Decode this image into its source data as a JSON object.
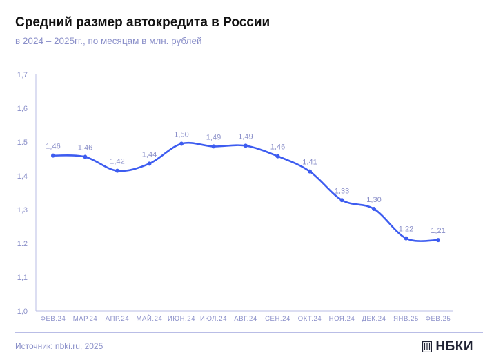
{
  "header": {
    "title": "Средний размер автокредита в России",
    "subtitle": "в 2024 – 2025гг., по месяцам в млн. рублей"
  },
  "footer": {
    "source": "Источник: nbki.ru, 2025",
    "logo_text": "НБКИ"
  },
  "colors": {
    "line": "#3d5cf0",
    "accent": "#8a8fc9",
    "rule": "#b9bde6"
  },
  "chart_data": {
    "type": "line",
    "title": "Средний размер автокредита в России",
    "subtitle": "в 2024 – 2025гг., по месяцам в млн. рублей",
    "categories": [
      "ФЕВ.24",
      "МАР.24",
      "АПР.24",
      "МАЙ.24",
      "ИЮН.24",
      "ИЮЛ.24",
      "АВГ.24",
      "СЕН.24",
      "ОКТ.24",
      "НОЯ.24",
      "ДЕК.24",
      "ЯНВ.25",
      "ФЕВ.25"
    ],
    "values": [
      1.46,
      1.456,
      1.415,
      1.436,
      1.495,
      1.487,
      1.489,
      1.458,
      1.413,
      1.328,
      1.302,
      1.215,
      1.21
    ],
    "data_labels": [
      "1,46",
      "1,46",
      "1,42",
      "1,44",
      "1,50",
      "1,49",
      "1,49",
      "1,46",
      "1,41",
      "1,33",
      "1,30",
      "1,22",
      "1,21"
    ],
    "y_ticks": [
      {
        "value": 1.0,
        "label": "1,0"
      },
      {
        "value": 1.1,
        "label": "1,1"
      },
      {
        "value": 1.2,
        "label": "1.2"
      },
      {
        "value": 1.3,
        "label": "1,3"
      },
      {
        "value": 1.4,
        "label": "1,4"
      },
      {
        "value": 1.5,
        "label": "1.5"
      },
      {
        "value": 1.6,
        "label": "1,6"
      },
      {
        "value": 1.7,
        "label": "1,7"
      }
    ],
    "ylim": [
      1.0,
      1.7
    ],
    "grid": false,
    "smooth": true
  }
}
